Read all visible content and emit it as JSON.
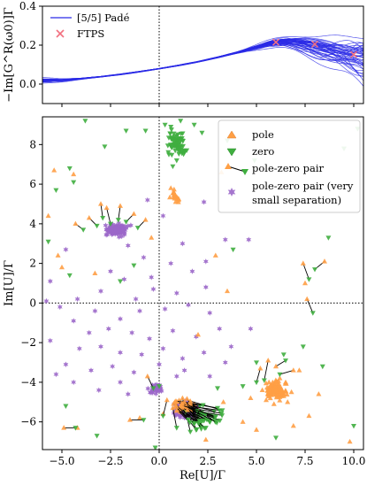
{
  "chart_data": [
    {
      "type": "line",
      "panel": "top",
      "ylabel": "−Im[G^R(ω0)]Γ",
      "xlim": [
        -6,
        10.5
      ],
      "ylim": [
        -0.1,
        0.4
      ],
      "yticks": [
        0.0,
        0.2,
        0.4
      ],
      "ytick_labels": [
        "0.0",
        "0.2",
        "0.4"
      ],
      "xticks": [
        -5.0,
        -2.5,
        0.0,
        2.5,
        5.0,
        7.5,
        10.0
      ],
      "show_xtick_labels": false,
      "grid": false,
      "vertical_reference_line_x": 0,
      "legend_position": "top-left",
      "series": [
        {
          "name": "[5/5] Padé",
          "kind": "line",
          "color": "#2a2ae6",
          "x": [
            -6.0,
            -5.0,
            -4.0,
            -3.0,
            -2.0,
            -1.0,
            0.0,
            1.0,
            2.0,
            3.0,
            4.0,
            4.5,
            5.0,
            5.5,
            6.0,
            6.5,
            7.0,
            7.5,
            8.0,
            8.5,
            9.0,
            9.5,
            10.0,
            10.5
          ],
          "y": [
            0.018,
            0.02,
            0.028,
            0.038,
            0.05,
            0.064,
            0.079,
            0.096,
            0.115,
            0.137,
            0.162,
            0.176,
            0.19,
            0.203,
            0.212,
            0.215,
            0.212,
            0.203,
            0.19,
            0.176,
            0.162,
            0.149,
            0.138,
            0.128
          ],
          "band_spread": [
            0.012,
            0.006,
            0.003,
            0.002,
            0.002,
            0.002,
            0.002,
            0.002,
            0.002,
            0.003,
            0.004,
            0.006,
            0.01,
            0.015,
            0.02,
            0.026,
            0.033,
            0.04,
            0.047,
            0.055,
            0.065,
            0.075,
            0.09,
            0.11
          ]
        },
        {
          "name": "FTPS",
          "kind": "scatter",
          "marker": "x",
          "color": "#f2707f",
          "x": [
            6.0,
            8.0,
            10.0
          ],
          "y": [
            0.215,
            0.205,
            0.152
          ]
        }
      ]
    },
    {
      "type": "scatter",
      "panel": "bottom",
      "xlabel": "Re[U]/Γ",
      "ylabel": "Im[U]/Γ",
      "xlim": [
        -6,
        10.5
      ],
      "ylim": [
        -7.4,
        9.4
      ],
      "xticks": [
        -5.0,
        -2.5,
        0.0,
        2.5,
        5.0,
        7.5,
        10.0
      ],
      "xtick_labels": [
        "−5.0",
        "−2.5",
        "0.0",
        "2.5",
        "5.0",
        "7.5",
        "10.0"
      ],
      "yticks": [
        -6,
        -4,
        -2,
        0,
        2,
        4,
        6,
        8
      ],
      "ytick_labels": [
        "−6",
        "−4",
        "−2",
        "0",
        "2",
        "4",
        "6",
        "8"
      ],
      "grid": false,
      "reference_lines": {
        "x": 0,
        "y": 0
      },
      "legend_position": "top-right",
      "colors": {
        "pole": "#ff9f45",
        "zero": "#3fae3f",
        "pair_line": "#000000",
        "small_separation": "#9b67c9"
      },
      "series": [
        {
          "name": "pole",
          "marker": "triangle-up",
          "color": "#ff9f45",
          "points": [
            [
              6.0,
              -4.4
            ],
            [
              6.3,
              -4.7
            ],
            [
              5.7,
              -4.2
            ],
            [
              6.5,
              -4.0
            ],
            [
              5.5,
              -4.9
            ],
            [
              6.8,
              -4.5
            ],
            [
              6.2,
              -3.8
            ],
            [
              5.9,
              -5.1
            ],
            [
              6.6,
              -5.0
            ],
            [
              5.3,
              -4.4
            ],
            [
              0.8,
              5.5
            ],
            [
              1.0,
              5.2
            ],
            [
              0.6,
              5.8
            ],
            [
              -5.4,
              6.7
            ],
            [
              -4.4,
              6.5
            ],
            [
              -5.7,
              4.4
            ],
            [
              -5.2,
              2.4
            ],
            [
              -5.0,
              1.8
            ],
            [
              -0.4,
              3.3
            ],
            [
              2.0,
              -1.6
            ],
            [
              7.5,
              1.0
            ],
            [
              3.5,
              0.6
            ],
            [
              2.4,
              -6.9
            ],
            [
              -1.0,
              -5.8
            ],
            [
              8.2,
              -4.6
            ],
            [
              7.7,
              -5.7
            ],
            [
              5.0,
              -6.4
            ],
            [
              4.3,
              -6.0
            ],
            [
              9.8,
              -7.0
            ],
            [
              -4.2,
              -6.3
            ],
            [
              0.2,
              -5.6
            ],
            [
              3.2,
              6.6
            ],
            [
              3.3,
              -5.0
            ],
            [
              4.7,
              -4.8
            ],
            [
              7.2,
              -3.4
            ],
            [
              6.9,
              -6.2
            ],
            [
              2.9,
              2.4
            ],
            [
              -3.3,
              1.5
            ]
          ]
        },
        {
          "name": "zero",
          "marker": "triangle-down",
          "color": "#3fae3f",
          "points": [
            [
              0.8,
              8.4
            ],
            [
              1.0,
              7.8
            ],
            [
              0.6,
              8.9
            ],
            [
              1.2,
              8.2
            ],
            [
              0.9,
              7.2
            ],
            [
              0.3,
              9.0
            ],
            [
              1.3,
              7.6
            ],
            [
              0.5,
              7.5
            ],
            [
              1.1,
              9.2
            ],
            [
              0.7,
              6.9
            ],
            [
              -1.7,
              8.7
            ],
            [
              -0.7,
              8.7
            ],
            [
              2.2,
              8.6
            ],
            [
              3.5,
              8.2
            ],
            [
              4.9,
              7.2
            ],
            [
              -2.8,
              7.9
            ],
            [
              -3.8,
              9.2
            ],
            [
              -4.4,
              6.1
            ],
            [
              -5.3,
              5.7
            ],
            [
              -4.6,
              6.8
            ],
            [
              9.5,
              7.8
            ],
            [
              10.2,
              8.8
            ],
            [
              1.8,
              9.0
            ],
            [
              -5.7,
              3.1
            ],
            [
              -4.6,
              1.4
            ],
            [
              -2.0,
              1.1
            ],
            [
              0.0,
              -4.2
            ],
            [
              -0.2,
              -7.3
            ],
            [
              -4.8,
              -5.2
            ],
            [
              -3.2,
              -6.7
            ],
            [
              8.4,
              -3.2
            ],
            [
              7.4,
              -2.2
            ],
            [
              6.4,
              -2.6
            ],
            [
              4.3,
              -4.2
            ],
            [
              5.0,
              -3.0
            ],
            [
              6.0,
              -6.8
            ],
            [
              10.0,
              -6.2
            ],
            [
              3.0,
              -4.3
            ],
            [
              -1.3,
              1.9
            ],
            [
              3.8,
              2.7
            ],
            [
              8.7,
              3.3
            ]
          ]
        },
        {
          "name": "pole-zero pair",
          "style": "segment with pole and zero markers",
          "pairs": [
            [
              -2.7,
              4.8,
              -2.5,
              4.0
            ],
            [
              -3.6,
              4.3,
              -3.2,
              3.9
            ],
            [
              -1.3,
              4.5,
              -1.7,
              4.1
            ],
            [
              -0.7,
              4.2,
              -1.1,
              3.8
            ],
            [
              -4.3,
              4.0,
              -3.9,
              3.7
            ],
            [
              -2.0,
              4.9,
              -2.1,
              4.2
            ],
            [
              -3.0,
              5.0,
              -2.9,
              4.3
            ],
            [
              7.4,
              2.0,
              7.7,
              1.2
            ],
            [
              8.5,
              2.1,
              8.0,
              1.7
            ],
            [
              7.6,
              0.2,
              7.9,
              -0.5
            ],
            [
              6.0,
              -3.2,
              6.5,
              -2.9
            ],
            [
              5.2,
              -3.3,
              5.0,
              -4.0
            ],
            [
              5.6,
              -2.9,
              5.4,
              -3.9
            ],
            [
              6.9,
              -3.4,
              6.2,
              -3.6
            ],
            [
              0.4,
              -4.9,
              0.2,
              -5.7
            ],
            [
              1.6,
              -5.0,
              2.6,
              -6.0
            ],
            [
              1.1,
              -5.5,
              2.4,
              -6.3
            ],
            [
              0.8,
              -5.0,
              1.9,
              -6.4
            ],
            [
              1.4,
              -5.3,
              2.8,
              -5.8
            ],
            [
              1.8,
              -5.1,
              3.0,
              -5.3
            ],
            [
              2.0,
              -5.4,
              2.9,
              -6.0
            ],
            [
              1.2,
              -4.8,
              1.6,
              -6.5
            ],
            [
              0.7,
              -5.3,
              0.9,
              -6.3
            ],
            [
              -1.5,
              -5.9,
              -0.8,
              -5.9
            ],
            [
              -4.9,
              -6.3,
              -4.3,
              -6.3
            ],
            [
              -0.6,
              -3.7,
              -0.3,
              -4.3
            ]
          ]
        },
        {
          "name": "pole-zero pair (very small separation)",
          "marker": "star",
          "color": "#9b67c9",
          "clusters": [
            [
              -2.2,
              3.7,
              0.5,
              0.25,
              140
            ],
            [
              1.3,
              -5.4,
              0.55,
              0.35,
              160
            ],
            [
              -0.2,
              -4.3,
              0.4,
              0.3,
              40
            ]
          ],
          "points": [
            [
              -1.6,
              2.9
            ],
            [
              -0.8,
              2.3
            ],
            [
              0.6,
              2.0
            ],
            [
              1.7,
              1.6
            ],
            [
              -1.8,
              1.2
            ],
            [
              -0.3,
              0.7
            ],
            [
              0.9,
              0.5
            ],
            [
              2.4,
              0.8
            ],
            [
              -2.5,
              1.6
            ],
            [
              -3.0,
              0.6
            ],
            [
              -4.2,
              0.2
            ],
            [
              -5.8,
              0.1
            ],
            [
              -5.1,
              -0.2
            ],
            [
              -4.4,
              -0.9
            ],
            [
              -3.3,
              -0.4
            ],
            [
              -2.0,
              -0.8
            ],
            [
              -1.0,
              -0.4
            ],
            [
              0.3,
              -0.3
            ],
            [
              1.5,
              -0.1
            ],
            [
              2.6,
              -0.5
            ],
            [
              -3.6,
              -1.5
            ],
            [
              -2.6,
              -1.3
            ],
            [
              -1.4,
              -1.5
            ],
            [
              -0.5,
              -1.8
            ],
            [
              0.7,
              -1.4
            ],
            [
              1.9,
              -1.7
            ],
            [
              3.1,
              -1.3
            ],
            [
              -4.1,
              -2.3
            ],
            [
              -3.0,
              -2.2
            ],
            [
              -2.0,
              -2.5
            ],
            [
              -0.9,
              -2.6
            ],
            [
              0.2,
              -2.3
            ],
            [
              1.2,
              -2.8
            ],
            [
              2.3,
              -2.5
            ],
            [
              3.7,
              -2.2
            ],
            [
              -4.8,
              -3.1
            ],
            [
              -3.5,
              -3.4
            ],
            [
              -2.4,
              -3.2
            ],
            [
              -1.3,
              -3.5
            ],
            [
              0.0,
              -3.1
            ],
            [
              1.3,
              -3.4
            ],
            [
              2.6,
              -3.7
            ],
            [
              3.4,
              -3.0
            ],
            [
              -4.4,
              -4.0
            ],
            [
              -3.1,
              -4.4
            ],
            [
              -2.0,
              -4.0
            ],
            [
              -1.6,
              -4.6
            ],
            [
              -5.6,
              -1.9
            ],
            [
              -5.3,
              -3.6
            ],
            [
              -0.6,
              5.2
            ],
            [
              0.2,
              4.4
            ],
            [
              -4.8,
              2.7
            ],
            [
              -0.4,
              1.3
            ],
            [
              -1.2,
              0.2
            ],
            [
              1.2,
              3.0
            ],
            [
              2.4,
              2.1
            ],
            [
              -5.6,
              1.1
            ],
            [
              4.6,
              3.2
            ],
            [
              0.9,
              -3.7
            ],
            [
              4.7,
              -1.3
            ],
            [
              2.3,
              5.1
            ],
            [
              3.4,
              3.2
            ]
          ]
        }
      ]
    }
  ]
}
